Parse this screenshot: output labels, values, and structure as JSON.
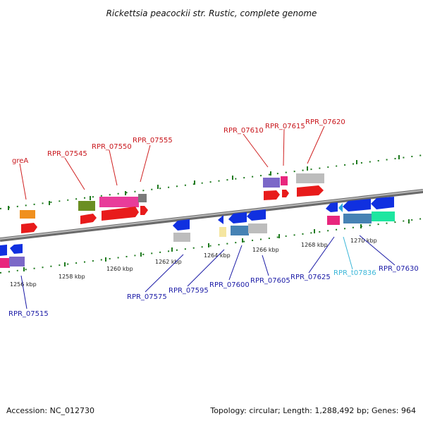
{
  "title": "Rickettsia peacockii str. Rustic, complete genome",
  "footer": {
    "accession": "Accession: NC_012730",
    "summary": "Topology: circular; Length: 1,288,492 bp; Genes: 964"
  },
  "scale": {
    "ticks": [
      "1256 kbp",
      "1258 kbp",
      "1260 kbp",
      "1262 kbp",
      "1264 kbp",
      "1266 kbp",
      "1268 kbp",
      "1270 kbp"
    ]
  },
  "gene_labels": {
    "top": [
      "greA",
      "RPR_07545",
      "RPR_07550",
      "RPR_07555",
      "RPR_07610",
      "RPR_07615",
      "RPR_07620"
    ],
    "bottom": [
      "RPR_07515",
      "RPR_07575",
      "RPR_07595",
      "RPR_07600",
      "RPR_07605",
      "RPR_07625",
      "RPR_t07836",
      "RPR_07630"
    ]
  },
  "colors": {
    "forward_label": "#c8151b",
    "reverse_label": "#1a1aa6",
    "trna_label": "#3ab6d8",
    "backbone": "#8a8a8a",
    "tick_dots": "#1e7a1e"
  }
}
